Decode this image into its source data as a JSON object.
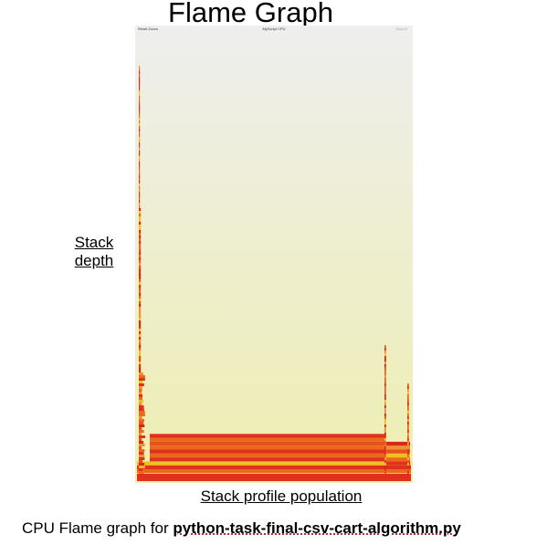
{
  "title": "Flame Graph",
  "y_label_line1": "Stack",
  "y_label_line2": "depth",
  "x_label": "Stack profile population",
  "caption_prefix": "CPU Flame graph for ",
  "caption_file": "python-task-final-csv-cart-algorithm.py",
  "graph": {
    "reset_zoom": "Reset Zoom",
    "graph_title": "MyScript CPU",
    "search": "Search",
    "colors": {
      "bg_top": "#eeeeee",
      "bg_bottom": "#eeeeb0",
      "red": "#e0301e",
      "orange": "#e86a1a",
      "yellow": "#f0c020"
    }
  }
}
